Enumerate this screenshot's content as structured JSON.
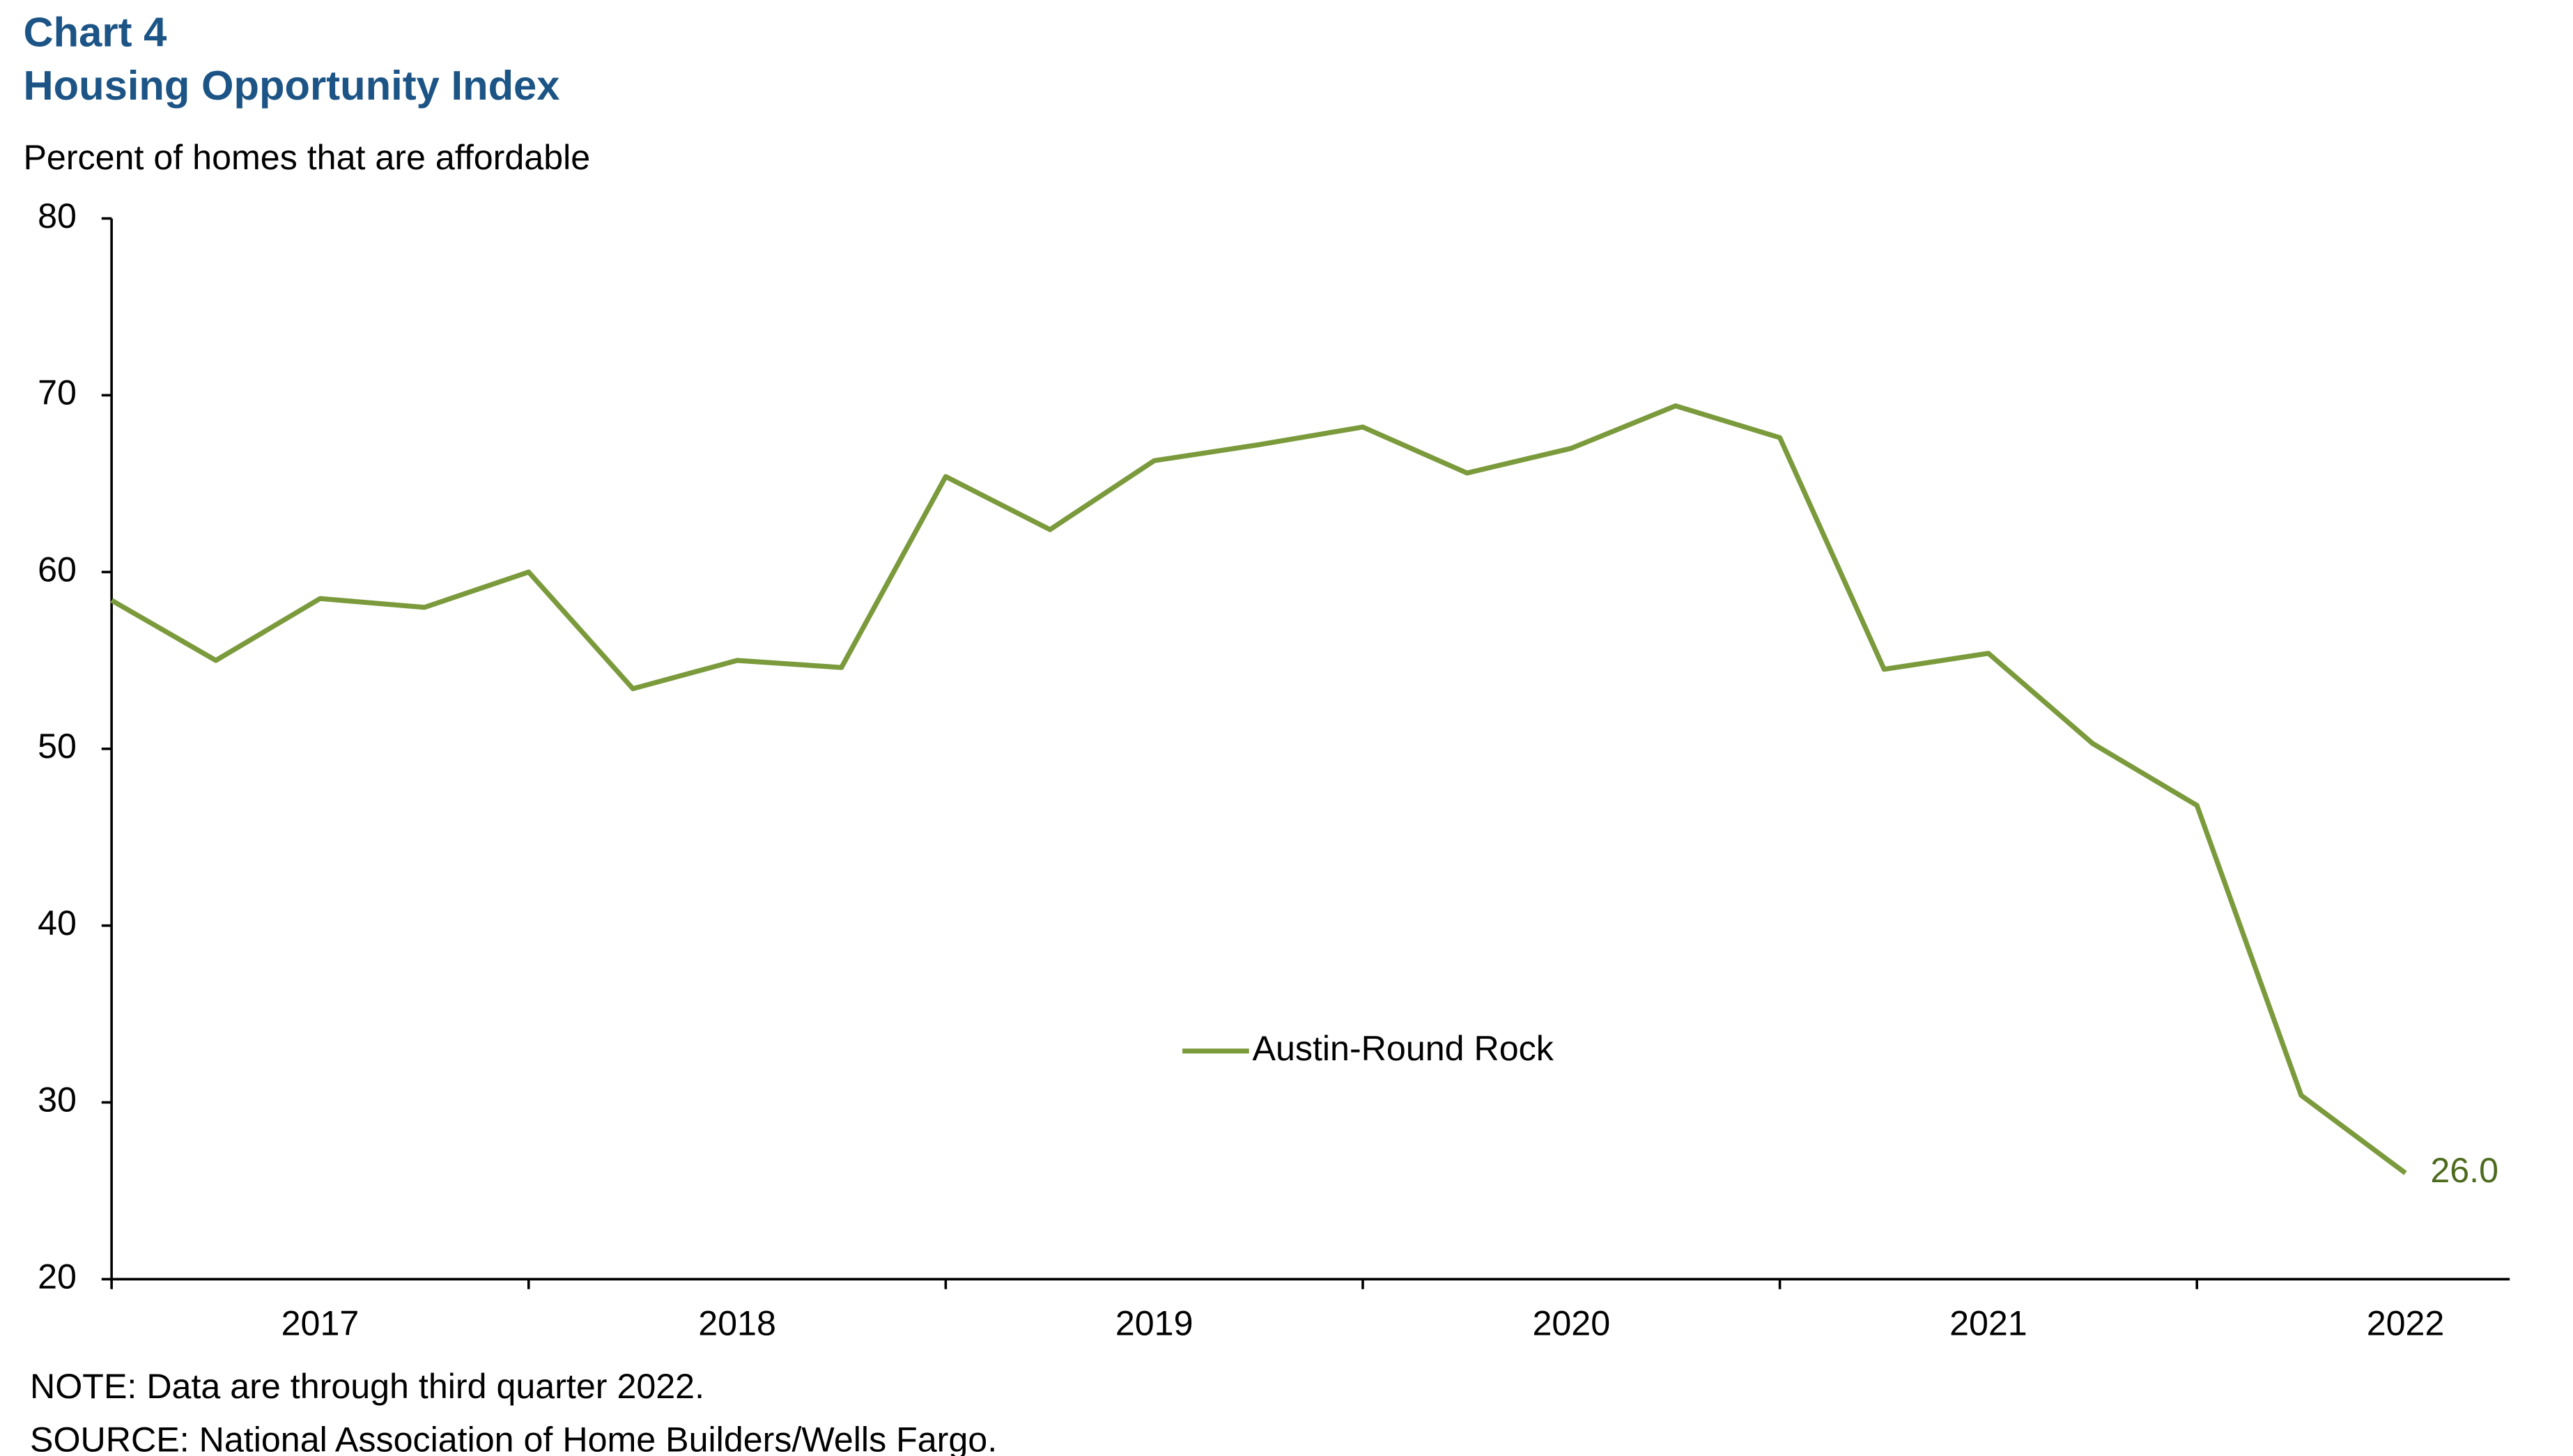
{
  "chart_data": {
    "type": "line",
    "label": "Chart 4",
    "title": "Housing Opportunity Index",
    "y_label": "Percent of homes that are affordable",
    "years": [
      "2017",
      "2018",
      "2019",
      "2020",
      "2021",
      "2022"
    ],
    "series": [
      {
        "name": "Austin-Round Rock",
        "color": "#7b9a3c",
        "values": [
          58.4,
          55.0,
          58.5,
          58.0,
          60.0,
          53.4,
          55.0,
          54.6,
          65.4,
          62.4,
          66.3,
          67.2,
          68.2,
          65.6,
          67.0,
          69.4,
          67.6,
          54.5,
          55.4,
          50.3,
          46.8,
          30.4,
          26.0
        ],
        "value_labels": [
          null,
          null,
          null,
          null,
          null,
          null,
          null,
          null,
          null,
          null,
          null,
          null,
          null,
          null,
          null,
          null,
          null,
          null,
          null,
          null,
          null,
          null,
          "26.0"
        ]
      }
    ],
    "ylim": [
      20,
      80
    ],
    "yticks": [
      20,
      30,
      40,
      50,
      60,
      70,
      80
    ],
    "note": "NOTE: Data are through third quarter 2022.",
    "source": "SOURCE: National Association of Home Builders/Wells Fargo."
  }
}
